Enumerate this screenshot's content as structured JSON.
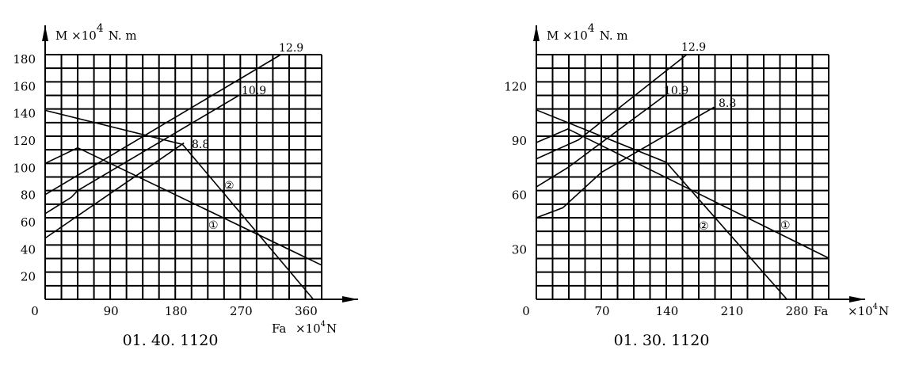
{
  "chart_data": [
    {
      "type": "line",
      "title": "01. 40. 1120",
      "ylabel": "M  ×10",
      "ylabel_exp": "4",
      "ylabel_unit": "N. m",
      "xlabel": "Fa",
      "xlabel_unit_pre": "×10",
      "xlabel_exp": "4",
      "xlabel_unit": "N",
      "xlim": [
        0,
        382.5
      ],
      "ylim": [
        0,
        180
      ],
      "grid": true,
      "grid_cols": 17,
      "grid_rows": 18,
      "xticks": [
        "0",
        "90",
        "180",
        "270",
        "360"
      ],
      "xtick_values": [
        0,
        90,
        180,
        270,
        360
      ],
      "yticks": [
        "20",
        "40",
        "60",
        "80",
        "100",
        "120",
        "140",
        "160",
        "180"
      ],
      "ytick_values": [
        20,
        40,
        60,
        80,
        100,
        120,
        140,
        160,
        180
      ],
      "series": [
        {
          "name": "12.9",
          "points": [
            [
              0,
              77
            ],
            [
              326,
              180
            ]
          ]
        },
        {
          "name": "10.9",
          "points": [
            [
              0,
              63
            ],
            [
              36,
              75
            ],
            [
              45,
              80
            ],
            [
              268,
              150
            ]
          ]
        },
        {
          "name": "8.8",
          "points": [
            [
              0,
              45
            ],
            [
              192,
              115
            ]
          ]
        },
        {
          "name": "①",
          "points": [
            [
              0,
              100
            ],
            [
              45,
              111.5
            ],
            [
              383,
              25
            ]
          ]
        },
        {
          "name": "②",
          "points": [
            [
              0,
              139
            ],
            [
              190,
              114
            ],
            [
              371,
              0
            ]
          ]
        }
      ]
    },
    {
      "type": "line",
      "title": "01. 30. 1120",
      "ylabel": "M  ×10",
      "ylabel_exp": "4",
      "ylabel_unit": "N. m",
      "xlabel": "Fa",
      "xlabel_unit_pre": "×10",
      "xlabel_exp": "4",
      "xlabel_unit": "N",
      "xlim": [
        0,
        315
      ],
      "ylim": [
        0,
        135
      ],
      "grid": true,
      "grid_cols": 18,
      "grid_rows": 18,
      "xticks": [
        "0",
        "70",
        "140",
        "210",
        "280"
      ],
      "xtick_values": [
        0,
        70,
        140,
        210,
        280
      ],
      "yticks": [
        "30",
        "60",
        "90",
        "120"
      ],
      "ytick_values": [
        30,
        60,
        90,
        120
      ],
      "series": [
        {
          "name": "12.9",
          "points": [
            [
              0,
              77.5
            ],
            [
              45.5,
              88
            ],
            [
              162,
              135
            ]
          ]
        },
        {
          "name": "10.9",
          "points": [
            [
              0,
              62
            ],
            [
              34,
              72.7
            ],
            [
              140,
              113
            ]
          ]
        },
        {
          "name": "8.8",
          "points": [
            [
              0,
              45
            ],
            [
              28.5,
              50.5
            ],
            [
              70,
              70
            ],
            [
              191.5,
              106
            ]
          ]
        },
        {
          "name": "①",
          "points": [
            [
              0,
              86.5
            ],
            [
              34,
              94
            ],
            [
              314,
              23
            ]
          ]
        },
        {
          "name": "②",
          "points": [
            [
              0,
              104.5
            ],
            [
              140,
              75.6
            ],
            [
              270,
              0
            ]
          ]
        }
      ]
    }
  ]
}
